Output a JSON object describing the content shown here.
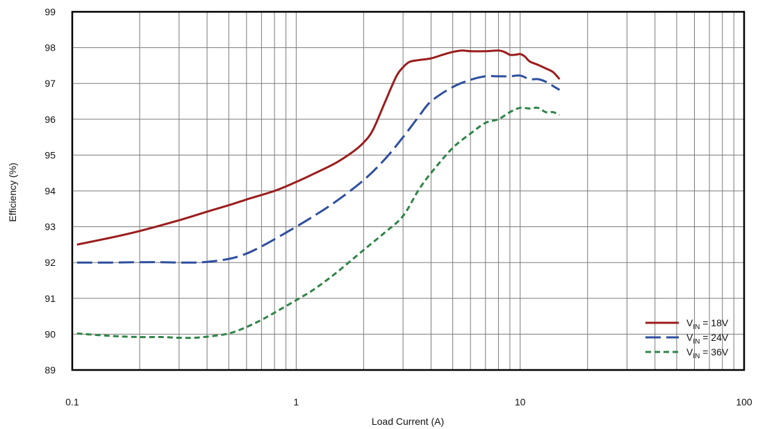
{
  "chart_data": {
    "type": "line",
    "xlabel": "Load Current (A)",
    "ylabel": "Efficiency (%)",
    "xscale": "log",
    "xlim": [
      0.1,
      100
    ],
    "ylim": [
      89,
      99
    ],
    "grid": true,
    "legend_position": "bottom-right",
    "x_tick_labels": [
      {
        "value": 0.1,
        "label": "0.1"
      },
      {
        "value": 1,
        "label": "1"
      },
      {
        "value": 10,
        "label": "10"
      },
      {
        "value": 100,
        "label": "100"
      }
    ],
    "y_tick_labels": [
      {
        "value": 89,
        "label": "89"
      },
      {
        "value": 90,
        "label": "90"
      },
      {
        "value": 91,
        "label": "91"
      },
      {
        "value": 92,
        "label": "92"
      },
      {
        "value": 93,
        "label": "93"
      },
      {
        "value": 94,
        "label": "94"
      },
      {
        "value": 95,
        "label": "95"
      },
      {
        "value": 96,
        "label": "96"
      },
      {
        "value": 97,
        "label": "97"
      },
      {
        "value": 98,
        "label": "98"
      },
      {
        "value": 99,
        "label": "99"
      }
    ],
    "series": [
      {
        "name": "VIN = 18V",
        "legend_main": "V",
        "legend_sub": "IN",
        "legend_rest": " = 18V",
        "color": "#9b1c1c",
        "dash": "solid",
        "points": [
          [
            0.105,
            92.5
          ],
          [
            0.15,
            92.7
          ],
          [
            0.2,
            92.88
          ],
          [
            0.3,
            93.18
          ],
          [
            0.4,
            93.42
          ],
          [
            0.5,
            93.6
          ],
          [
            0.6,
            93.76
          ],
          [
            0.8,
            94.0
          ],
          [
            1.0,
            94.25
          ],
          [
            1.2,
            94.48
          ],
          [
            1.5,
            94.78
          ],
          [
            1.8,
            95.1
          ],
          [
            2.0,
            95.35
          ],
          [
            2.2,
            95.7
          ],
          [
            2.5,
            96.5
          ],
          [
            2.8,
            97.2
          ],
          [
            3.0,
            97.45
          ],
          [
            3.2,
            97.6
          ],
          [
            3.5,
            97.65
          ],
          [
            4.0,
            97.7
          ],
          [
            4.5,
            97.8
          ],
          [
            5.0,
            97.88
          ],
          [
            5.5,
            97.92
          ],
          [
            6.0,
            97.9
          ],
          [
            7.0,
            97.9
          ],
          [
            8.0,
            97.92
          ],
          [
            8.5,
            97.88
          ],
          [
            9.0,
            97.8
          ],
          [
            9.5,
            97.8
          ],
          [
            10.0,
            97.82
          ],
          [
            10.5,
            97.75
          ],
          [
            11.0,
            97.62
          ],
          [
            12.0,
            97.52
          ],
          [
            13.0,
            97.42
          ],
          [
            14.0,
            97.32
          ],
          [
            15.0,
            97.12
          ]
        ]
      },
      {
        "name": "VIN = 24V",
        "legend_main": "V",
        "legend_sub": "IN",
        "legend_rest": " = 24V",
        "color": "#2e4f9e",
        "dash": "long-dash",
        "points": [
          [
            0.105,
            92.0
          ],
          [
            0.15,
            92.0
          ],
          [
            0.2,
            92.01
          ],
          [
            0.25,
            92.01
          ],
          [
            0.3,
            92.0
          ],
          [
            0.35,
            92.0
          ],
          [
            0.4,
            92.02
          ],
          [
            0.5,
            92.1
          ],
          [
            0.6,
            92.25
          ],
          [
            0.7,
            92.45
          ],
          [
            0.8,
            92.65
          ],
          [
            1.0,
            93.0
          ],
          [
            1.2,
            93.3
          ],
          [
            1.5,
            93.7
          ],
          [
            2.0,
            94.3
          ],
          [
            2.5,
            94.9
          ],
          [
            3.0,
            95.5
          ],
          [
            3.5,
            96.05
          ],
          [
            4.0,
            96.5
          ],
          [
            5.0,
            96.9
          ],
          [
            6.0,
            97.1
          ],
          [
            7.0,
            97.2
          ],
          [
            8.0,
            97.2
          ],
          [
            9.0,
            97.2
          ],
          [
            10.0,
            97.22
          ],
          [
            11.0,
            97.12
          ],
          [
            12.0,
            97.12
          ],
          [
            13.0,
            97.05
          ],
          [
            14.0,
            96.93
          ],
          [
            15.0,
            96.82
          ]
        ]
      },
      {
        "name": "VIN = 36V",
        "legend_main": "V",
        "legend_sub": "IN",
        "legend_rest": " = 36V",
        "color": "#2f8447",
        "dash": "short-dash",
        "points": [
          [
            0.105,
            90.02
          ],
          [
            0.15,
            89.95
          ],
          [
            0.2,
            89.92
          ],
          [
            0.25,
            89.92
          ],
          [
            0.3,
            89.9
          ],
          [
            0.35,
            89.9
          ],
          [
            0.4,
            89.93
          ],
          [
            0.5,
            90.02
          ],
          [
            0.6,
            90.2
          ],
          [
            0.7,
            90.4
          ],
          [
            0.8,
            90.6
          ],
          [
            1.0,
            90.95
          ],
          [
            1.2,
            91.25
          ],
          [
            1.5,
            91.7
          ],
          [
            2.0,
            92.35
          ],
          [
            2.5,
            92.85
          ],
          [
            3.0,
            93.3
          ],
          [
            3.5,
            94.0
          ],
          [
            4.0,
            94.5
          ],
          [
            5.0,
            95.2
          ],
          [
            6.0,
            95.6
          ],
          [
            7.0,
            95.9
          ],
          [
            8.0,
            96.0
          ],
          [
            9.0,
            96.2
          ],
          [
            10.0,
            96.32
          ],
          [
            11.0,
            96.3
          ],
          [
            12.0,
            96.32
          ],
          [
            13.0,
            96.2
          ],
          [
            14.0,
            96.2
          ],
          [
            15.0,
            96.12
          ]
        ]
      }
    ]
  }
}
